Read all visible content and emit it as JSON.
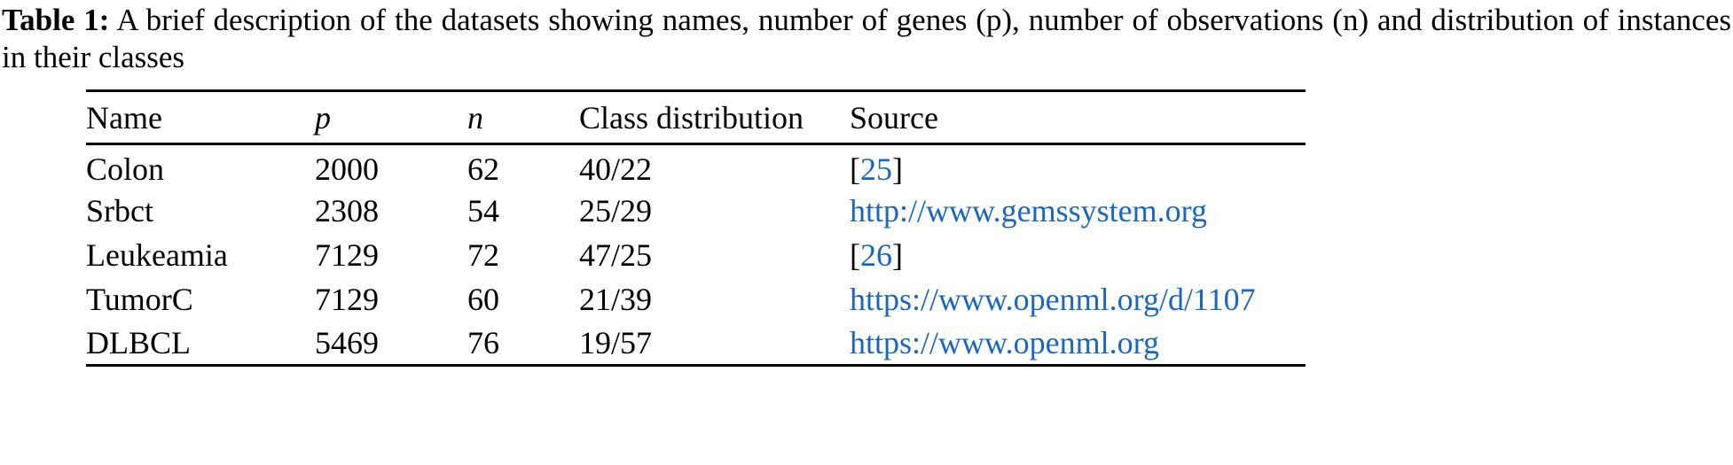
{
  "caption": {
    "label": "Table 1:",
    "text": "A brief description of the datasets showing names, number of genes (p), number of observations (n) and distribution of instances in their classes"
  },
  "link_color": "#1a66c0",
  "table": {
    "headers": [
      "Name",
      "p",
      "n",
      "Class distribution",
      "Source"
    ],
    "rows": [
      {
        "name": "Colon",
        "p": "2000",
        "n": "62",
        "dist": "40/22",
        "source": "25",
        "source_type": "citation"
      },
      {
        "name": "Srbct",
        "p": "2308",
        "n": "54",
        "dist": "25/29",
        "source": "http://www.gemssystem.org",
        "source_type": "url"
      },
      {
        "name": "Leukeamia",
        "p": "7129",
        "n": "72",
        "dist": "47/25",
        "source": "26",
        "source_type": "citation"
      },
      {
        "name": "TumorC",
        "p": "7129",
        "n": "60",
        "dist": "21/39",
        "source": "https://www.openml.org/d/1107",
        "source_type": "url"
      },
      {
        "name": "DLBCL",
        "p": "5469",
        "n": "76",
        "dist": "19/57",
        "source": "https://www.openml.org",
        "source_type": "url"
      }
    ]
  }
}
